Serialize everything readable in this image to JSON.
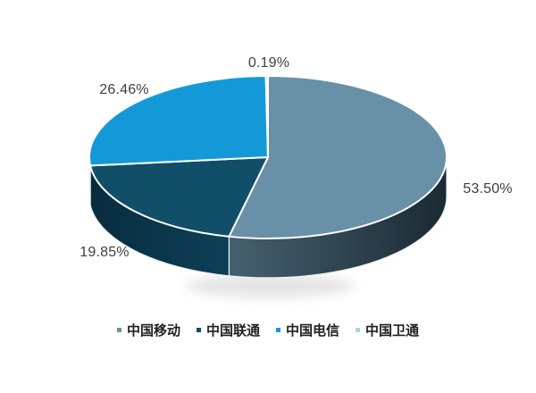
{
  "chart_data": {
    "type": "pie",
    "style": "3d",
    "title": "",
    "legend_position": "bottom",
    "background_color": "#ffffff",
    "label_color": "#404040",
    "slices": [
      {
        "label": "中国移动",
        "value": 53.5,
        "pct_label": "53.50%",
        "color": "#6890a6",
        "side_color_from": "#46606f",
        "side_color_to": "#1b2a34"
      },
      {
        "label": "中国联通",
        "value": 19.85,
        "pct_label": "19.85%",
        "color": "#114e68",
        "side_color_from": "#082c3e",
        "side_color_to": "#0d4058"
      },
      {
        "label": "中国电信",
        "value": 26.46,
        "pct_label": "26.46%",
        "color": "#1499d8",
        "side_color_from": "#0d6d99",
        "side_color_to": "#0d6d99"
      },
      {
        "label": "中国卫通",
        "value": 0.19,
        "pct_label": "0.19%",
        "color": "#a9d6e9",
        "side_color_from": "#7fb8d4",
        "side_color_to": "#7fb8d4"
      }
    ]
  }
}
